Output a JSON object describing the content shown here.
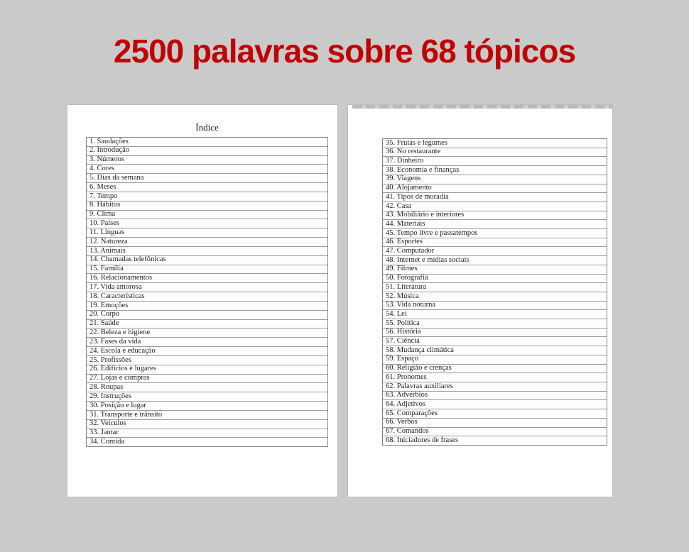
{
  "title": "2500 palavras sobre 68 tópicos",
  "index": {
    "heading": "Índice",
    "left_items": [
      "1. Saudações",
      "2. Introdução",
      "3. Números",
      "4. Cores",
      "5. Dias da semana",
      "6. Meses",
      "7. Tempo",
      "8. Hábitos",
      "9. Clima",
      "10. Países",
      "11. Línguas",
      "12. Natureza",
      "13. Animais",
      "14. Chamadas telefônicas",
      "15. Família",
      "16. Relacionamentos",
      "17. Vida amorosa",
      "18. Características",
      "19. Emoções",
      "20. Corpo",
      "21. Saúde",
      "22. Beleza e higiene",
      "23. Fases da vida",
      "24. Escola e educação",
      "25. Profissões",
      "26. Edifícios e lugares",
      "27. Lojas e compras",
      "28. Roupas",
      "29. Instruções",
      "30. Posição e lugar",
      "31. Transporte e trânsito",
      "32. Veículos",
      "33. Jantar",
      "34. Comida"
    ],
    "right_items": [
      "35. Frutas e legumes",
      "36. No restaurante",
      "37. Dinheiro",
      "38. Economia e finanças",
      "39. Viagens",
      "40. Alojamento",
      "41. Tipos de moradia",
      "42. Casa",
      "43. Mobiliário e interiores",
      "44. Materiais",
      "45. Tempo livre e passatempos",
      "46. Esportes",
      "47. Computador",
      "48. Internet e mídias sociais",
      "49. Filmes",
      "50. Fotografia",
      "51. Literatura",
      "52. Música",
      "53. Vida noturna",
      "54. Lei",
      "55. Política",
      "56. História",
      "57. Ciência",
      "58. Mudança climática",
      "59. Espaço",
      "60. Religião e crenças",
      "61. Pronomes",
      "62. Palavras auxiliares",
      "63. Advérbios",
      "64. Adjetivos",
      "65. Comparações",
      "66. Verbos",
      "67. Comandos",
      "68. Iniciadores de frases"
    ]
  },
  "colors": {
    "background": "#cacaca",
    "title_red": "#c00404",
    "page_white": "#ffffff",
    "table_border": "#848484",
    "row_divider": "#9c9c9c",
    "text": "#1f1f1f"
  }
}
